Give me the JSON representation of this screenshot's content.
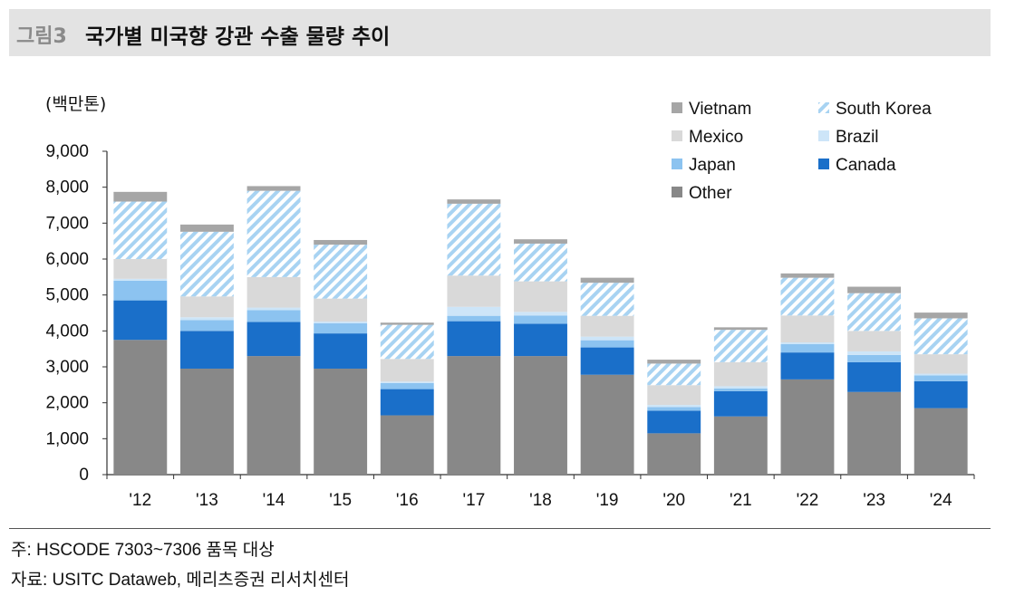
{
  "header": {
    "figure_number": "그림3",
    "title": "국가별 미국향 강관 수출 물량 추이"
  },
  "notes": {
    "note": "주: HSCODE 7303~7306 품목 대상",
    "source": "자료: USITC Dataweb, 메리츠증권 리서치센터"
  },
  "colors": {
    "Other": "#888888",
    "Canada": "#1a6fc9",
    "Japan": "#8cc3f0",
    "Brazil": "#cde5f8",
    "Mexico": "#d9d9d9",
    "South Korea": "#a8d3f2",
    "South Korea hatch": "#ffffff",
    "Vietnam": "#a6a6a6"
  },
  "chart_data": {
    "type": "bar",
    "stacked": true,
    "unit_label": "(백만톤)",
    "categories": [
      "'12",
      "'13",
      "'14",
      "'15",
      "'16",
      "'17",
      "'18",
      "'19",
      "'20",
      "'21",
      "'22",
      "'23",
      "'24"
    ],
    "ylim": [
      0,
      9000
    ],
    "yticks": [
      "0",
      "1,000",
      "2,000",
      "3,000",
      "4,000",
      "5,000",
      "6,000",
      "7,000",
      "8,000",
      "9,000"
    ],
    "ytick_values": [
      0,
      1000,
      2000,
      3000,
      4000,
      5000,
      6000,
      7000,
      8000,
      9000
    ],
    "grid": false,
    "legend_position": "top-right",
    "legend_order": [
      "Vietnam",
      "South Korea",
      "Mexico",
      "Brazil",
      "Japan",
      "Canada",
      "Other"
    ],
    "series": [
      {
        "name": "Other",
        "values": [
          3750,
          2950,
          3300,
          2950,
          1650,
          3300,
          3300,
          2780,
          1150,
          1620,
          2650,
          2300,
          1850
        ]
      },
      {
        "name": "Canada",
        "values": [
          1100,
          1050,
          950,
          980,
          730,
          970,
          900,
          760,
          630,
          700,
          750,
          830,
          750
        ]
      },
      {
        "name": "Japan",
        "values": [
          550,
          300,
          330,
          280,
          170,
          150,
          230,
          200,
          100,
          80,
          230,
          200,
          160
        ]
      },
      {
        "name": "Brazil",
        "values": [
          50,
          80,
          70,
          50,
          40,
          250,
          100,
          100,
          60,
          60,
          50,
          100,
          50
        ]
      },
      {
        "name": "Mexico",
        "values": [
          550,
          580,
          850,
          640,
          630,
          870,
          850,
          580,
          550,
          670,
          750,
          570,
          540
        ]
      },
      {
        "name": "South Korea",
        "values": [
          1600,
          1800,
          2400,
          1500,
          950,
          2000,
          1050,
          920,
          600,
          900,
          1050,
          1050,
          1000
        ]
      },
      {
        "name": "Vietnam",
        "values": [
          270,
          200,
          130,
          130,
          60,
          120,
          120,
          140,
          110,
          70,
          120,
          180,
          160
        ]
      }
    ]
  }
}
